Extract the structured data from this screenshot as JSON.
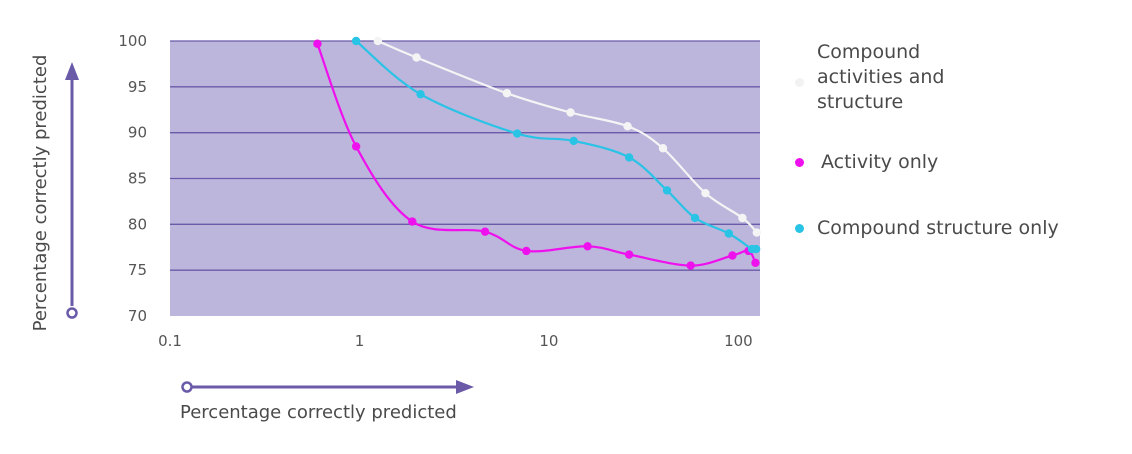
{
  "chart_data": {
    "type": "line",
    "x_scale": "log",
    "xlim": [
      0.1,
      130
    ],
    "ylim": [
      70,
      100
    ],
    "x_ticks": [
      0.1,
      1,
      10,
      100
    ],
    "x_tick_labels": [
      "0.1",
      "1",
      "10",
      "100"
    ],
    "y_ticks": [
      70,
      75,
      80,
      85,
      90,
      95,
      100
    ],
    "y_tick_labels": [
      "70",
      "75",
      "80",
      "85",
      "90",
      "95",
      "100"
    ],
    "xlabel": "Percentage correctly predicted",
    "ylabel": "Percentage correctly predicted",
    "grid": true,
    "legend_position": "right",
    "plot_background": "#bcb5dc",
    "series": [
      {
        "name": "Compound activities and structure",
        "color": "#f4f4f4",
        "x": [
          1.25,
          2.0,
          6.0,
          13.0,
          26.0,
          40.0,
          67.0,
          105.0,
          125.0
        ],
        "y": [
          100,
          98.2,
          94.3,
          92.2,
          90.7,
          88.3,
          83.4,
          80.7,
          79.1
        ]
      },
      {
        "name": "Activity only",
        "color": "#ee11ee",
        "x": [
          0.6,
          0.96,
          1.9,
          4.6,
          7.6,
          16.0,
          26.5,
          56.0,
          93.0,
          113.0,
          123.0
        ],
        "y": [
          99.7,
          88.5,
          80.3,
          79.2,
          77.1,
          77.6,
          76.7,
          75.5,
          76.6,
          77.1,
          75.8
        ]
      },
      {
        "name": "Compound structure only",
        "color": "#29c3e6",
        "x": [
          0.96,
          2.1,
          6.8,
          13.5,
          26.5,
          42.0,
          59.0,
          89.0,
          118.0,
          124.0
        ],
        "y": [
          100,
          94.2,
          89.9,
          89.1,
          87.3,
          83.7,
          80.7,
          79.0,
          77.3,
          77.3
        ]
      }
    ]
  },
  "axis_decoration_color": "#6a5aa8"
}
